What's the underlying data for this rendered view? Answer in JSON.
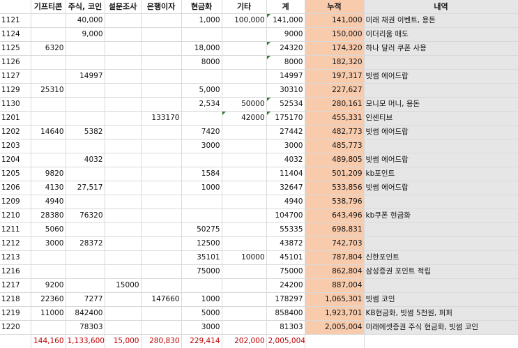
{
  "headers": [
    "",
    "기프티콘",
    "주식, 코인",
    "설문조사",
    "은행이자",
    "현금화",
    "기타",
    "계",
    "누적",
    "내역"
  ],
  "rows": [
    {
      "date": "1121",
      "gift": "",
      "stock": "40,000",
      "survey": "",
      "bank": "",
      "cash": "1,000",
      "etc": "100,000",
      "sum": "141,000",
      "cum": "141,000",
      "note": "미래 채권 이벤트, 용돈"
    },
    {
      "date": "1124",
      "gift": "",
      "stock": "9,000",
      "survey": "",
      "bank": "",
      "cash": "",
      "etc": "",
      "sum": "9000",
      "cum": "150,000",
      "note": "이더리움 매도"
    },
    {
      "date": "1125",
      "gift": "6320",
      "stock": "",
      "survey": "",
      "bank": "",
      "cash": "18,000",
      "etc": "",
      "sum": "24320",
      "cum": "174,320",
      "note": "하나 달러 쿠폰 사용"
    },
    {
      "date": "1126",
      "gift": "",
      "stock": "",
      "survey": "",
      "bank": "",
      "cash": "8000",
      "etc": "",
      "sum": "8000",
      "cum": "182,320",
      "note": ""
    },
    {
      "date": "1127",
      "gift": "",
      "stock": "14997",
      "survey": "",
      "bank": "",
      "cash": "",
      "etc": "",
      "sum": "14997",
      "cum": "197,317",
      "note": "빗썸 에어드랍"
    },
    {
      "date": "1129",
      "gift": "25310",
      "stock": "",
      "survey": "",
      "bank": "",
      "cash": "5,000",
      "etc": "",
      "sum": "30310",
      "cum": "227,627",
      "note": ""
    },
    {
      "date": "1130",
      "gift": "",
      "stock": "",
      "survey": "",
      "bank": "",
      "cash": "2,534",
      "etc": "50000",
      "sum": "52534",
      "cum": "280,161",
      "note": "모니모 머니, 용돈"
    },
    {
      "date": "1201",
      "gift": "",
      "stock": "",
      "survey": "",
      "bank": "133170",
      "cash": "",
      "etc": "42000",
      "sum": "175170",
      "cum": "455,331",
      "note": "인센티브"
    },
    {
      "date": "1202",
      "gift": "14640",
      "stock": "5382",
      "survey": "",
      "bank": "",
      "cash": "7420",
      "etc": "",
      "sum": "27442",
      "cum": "482,773",
      "note": "빗썸 에어드랍"
    },
    {
      "date": "1203",
      "gift": "",
      "stock": "",
      "survey": "",
      "bank": "",
      "cash": "3000",
      "etc": "",
      "sum": "3000",
      "cum": "485,773",
      "note": ""
    },
    {
      "date": "1204",
      "gift": "",
      "stock": "4032",
      "survey": "",
      "bank": "",
      "cash": "",
      "etc": "",
      "sum": "4032",
      "cum": "489,805",
      "note": "빗썸 에어드랍"
    },
    {
      "date": "1205",
      "gift": "9820",
      "stock": "",
      "survey": "",
      "bank": "",
      "cash": "1584",
      "etc": "",
      "sum": "11404",
      "cum": "501,209",
      "note": "kb포인트"
    },
    {
      "date": "1206",
      "gift": "4130",
      "stock": "27,517",
      "survey": "",
      "bank": "",
      "cash": "1000",
      "etc": "",
      "sum": "32647",
      "cum": "533,856",
      "note": "빗썸 에어드랍"
    },
    {
      "date": "1209",
      "gift": "4940",
      "stock": "",
      "survey": "",
      "bank": "",
      "cash": "",
      "etc": "",
      "sum": "4940",
      "cum": "538,796",
      "note": ""
    },
    {
      "date": "1210",
      "gift": "28380",
      "stock": "76320",
      "survey": "",
      "bank": "",
      "cash": "",
      "etc": "",
      "sum": "104700",
      "cum": "643,496",
      "note": "kb쿠폰 현금화"
    },
    {
      "date": "1211",
      "gift": "5060",
      "stock": "",
      "survey": "",
      "bank": "",
      "cash": "50275",
      "etc": "",
      "sum": "55335",
      "cum": "698,831",
      "note": ""
    },
    {
      "date": "1212",
      "gift": "3000",
      "stock": "28372",
      "survey": "",
      "bank": "",
      "cash": "12500",
      "etc": "",
      "sum": "43872",
      "cum": "742,703",
      "note": ""
    },
    {
      "date": "1213",
      "gift": "",
      "stock": "",
      "survey": "",
      "bank": "",
      "cash": "35101",
      "etc": "10000",
      "sum": "45101",
      "cum": "787,804",
      "note": "신한포인트"
    },
    {
      "date": "1216",
      "gift": "",
      "stock": "",
      "survey": "",
      "bank": "",
      "cash": "75000",
      "etc": "",
      "sum": "75000",
      "cum": "862,804",
      "note": "삼성증권 포인트 적립"
    },
    {
      "date": "1217",
      "gift": "9200",
      "stock": "",
      "survey": "15000",
      "bank": "",
      "cash": "",
      "etc": "",
      "sum": "24200",
      "cum": "887,004",
      "note": ""
    },
    {
      "date": "1218",
      "gift": "22360",
      "stock": "7277",
      "survey": "",
      "bank": "147660",
      "cash": "1000",
      "etc": "",
      "sum": "178297",
      "cum": "1,065,301",
      "note": "빗썸 코인"
    },
    {
      "date": "1219",
      "gift": "11000",
      "stock": "842400",
      "survey": "",
      "bank": "",
      "cash": "5000",
      "etc": "",
      "sum": "858400",
      "cum": "1,923,701",
      "note": "KB현금화, 빗썸 5천원, 퍼퍼"
    },
    {
      "date": "1220",
      "gift": "",
      "stock": "78303",
      "survey": "",
      "bank": "",
      "cash": "3000",
      "etc": "",
      "sum": "81303",
      "cum": "2,005,004",
      "note": "미래에셋증권 주식 현금화, 빗썸 코인"
    }
  ],
  "totals": {
    "gift": "144,160",
    "stock": "1,133,600",
    "survey": "15,000",
    "bank": "280,830",
    "cash": "229,414",
    "etc": "202,000",
    "sum": "2,005,004"
  },
  "colors": {
    "cumulative_fill": "#f8cbad",
    "note_fill": "#e7e6e6",
    "total_text": "#c00000",
    "grid": "#d9d9d9"
  }
}
